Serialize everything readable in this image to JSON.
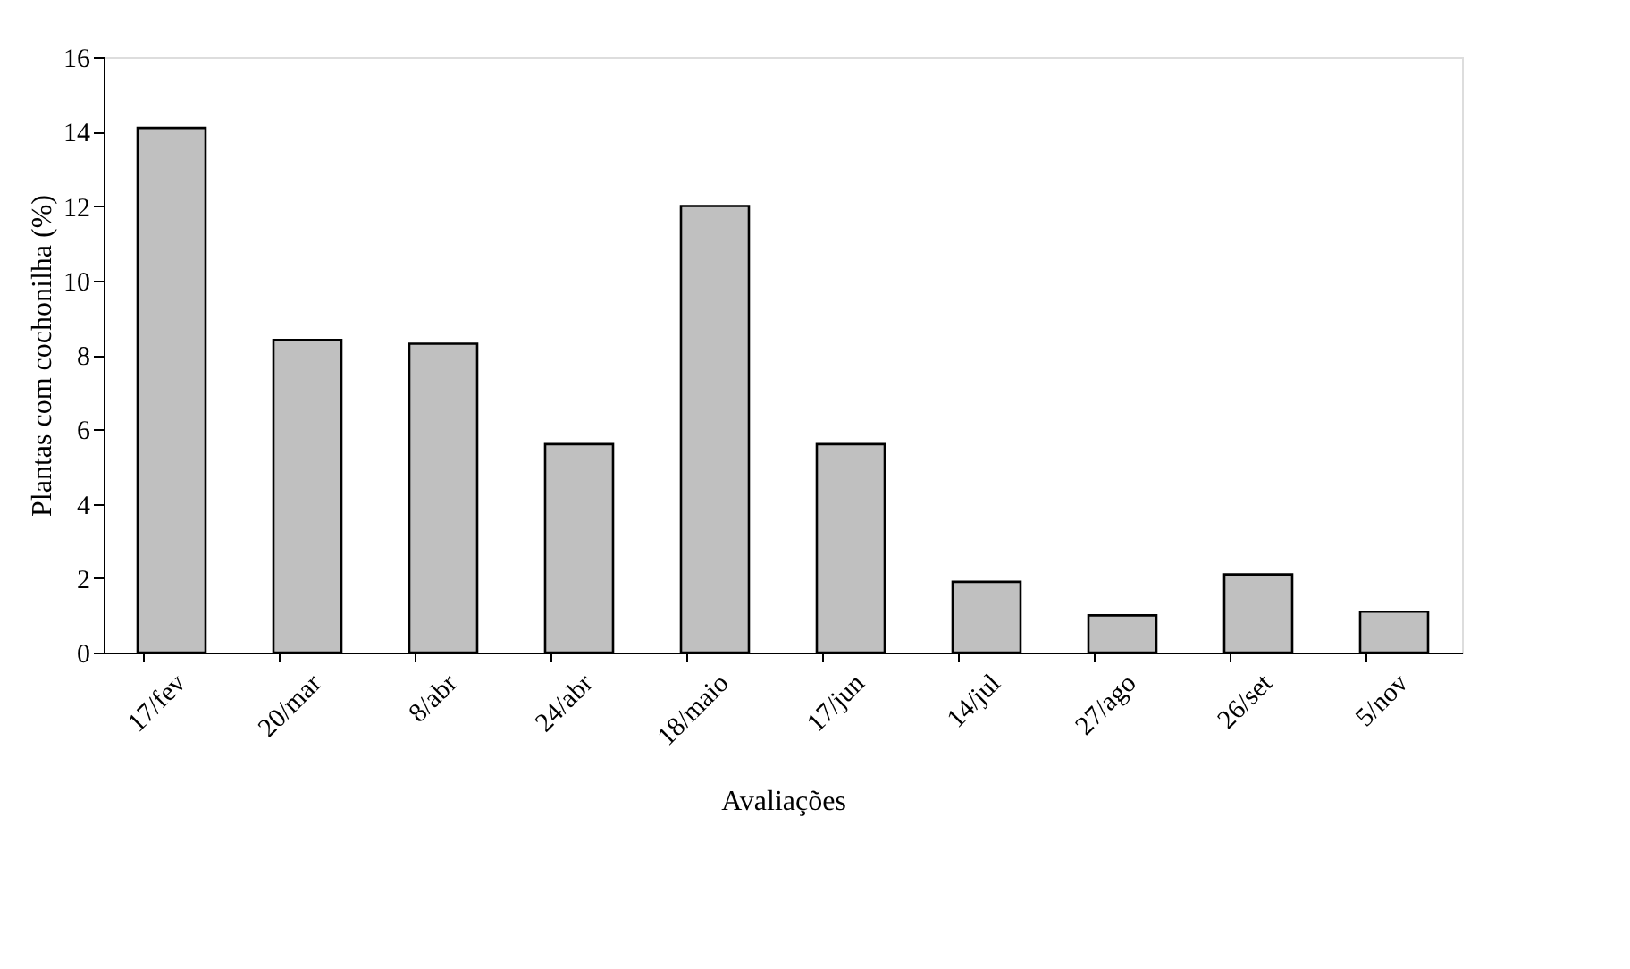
{
  "chart_data": {
    "type": "bar",
    "xlabel": "Avaliações",
    "ylabel": "Plantas com cochonilha (%)",
    "categories": [
      "17/fev",
      "20/mar",
      "8/abr",
      "24/abr",
      "18/maio",
      "17/jun",
      "14/jul",
      "27/ago",
      "26/set",
      "5/nov"
    ],
    "values": [
      14.1,
      8.4,
      8.3,
      5.6,
      12.0,
      5.6,
      1.9,
      1.0,
      2.1,
      1.1
    ],
    "color": "#c0c0c0",
    "ylim": [
      0,
      16
    ],
    "yticks": [
      0,
      2,
      4,
      6,
      8,
      10,
      12,
      14,
      16
    ],
    "grid": false
  }
}
